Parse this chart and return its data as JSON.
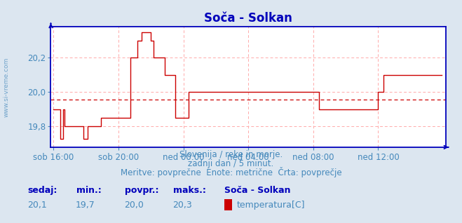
{
  "title": "Soča - Solkan",
  "line_color": "#cc0000",
  "avg_line_color": "#cc0000",
  "bg_color": "#dce6f0",
  "plot_bg_color": "#ffffff",
  "grid_color": "#ffaaaa",
  "axis_color": "#0000bb",
  "text_color": "#4488bb",
  "legend_key_color": "#0000bb",
  "ylabel_text": "www.si-vreme.com",
  "ylabel_color": "#4488bb",
  "footer_lines": [
    "Slovenija / reke in morje.",
    "zadnji dan / 5 minut.",
    "Meritve: povprečne  Enote: metrične  Črta: povprečje"
  ],
  "footer_color": "#4488bb",
  "xticklabels": [
    "sob 16:00",
    "sob 20:00",
    "ned 00:00",
    "ned 04:00",
    "ned 08:00",
    "ned 12:00"
  ],
  "xtick_positions": [
    0,
    48,
    96,
    144,
    192,
    240
  ],
  "ytick_positions": [
    19.8,
    20.0,
    20.2
  ],
  "ytick_labels": [
    "19,8",
    "20,0",
    "20,2"
  ],
  "ylim": [
    19.68,
    20.38
  ],
  "xlim": [
    -2,
    290
  ],
  "avg_value": 19.955,
  "title_fontsize": 12,
  "tick_fontsize": 8.5,
  "footer_fontsize": 8.5,
  "legend_fontsize": 9,
  "legend_labels": [
    "sedaj:",
    "min.:",
    "povpr.:",
    "maks.:",
    "Soča - Solkan"
  ],
  "legend_values": [
    "20,1",
    "19,7",
    "20,0",
    "20,3"
  ],
  "legend_series": "temperatura[C]",
  "legend_color": "#cc0000"
}
